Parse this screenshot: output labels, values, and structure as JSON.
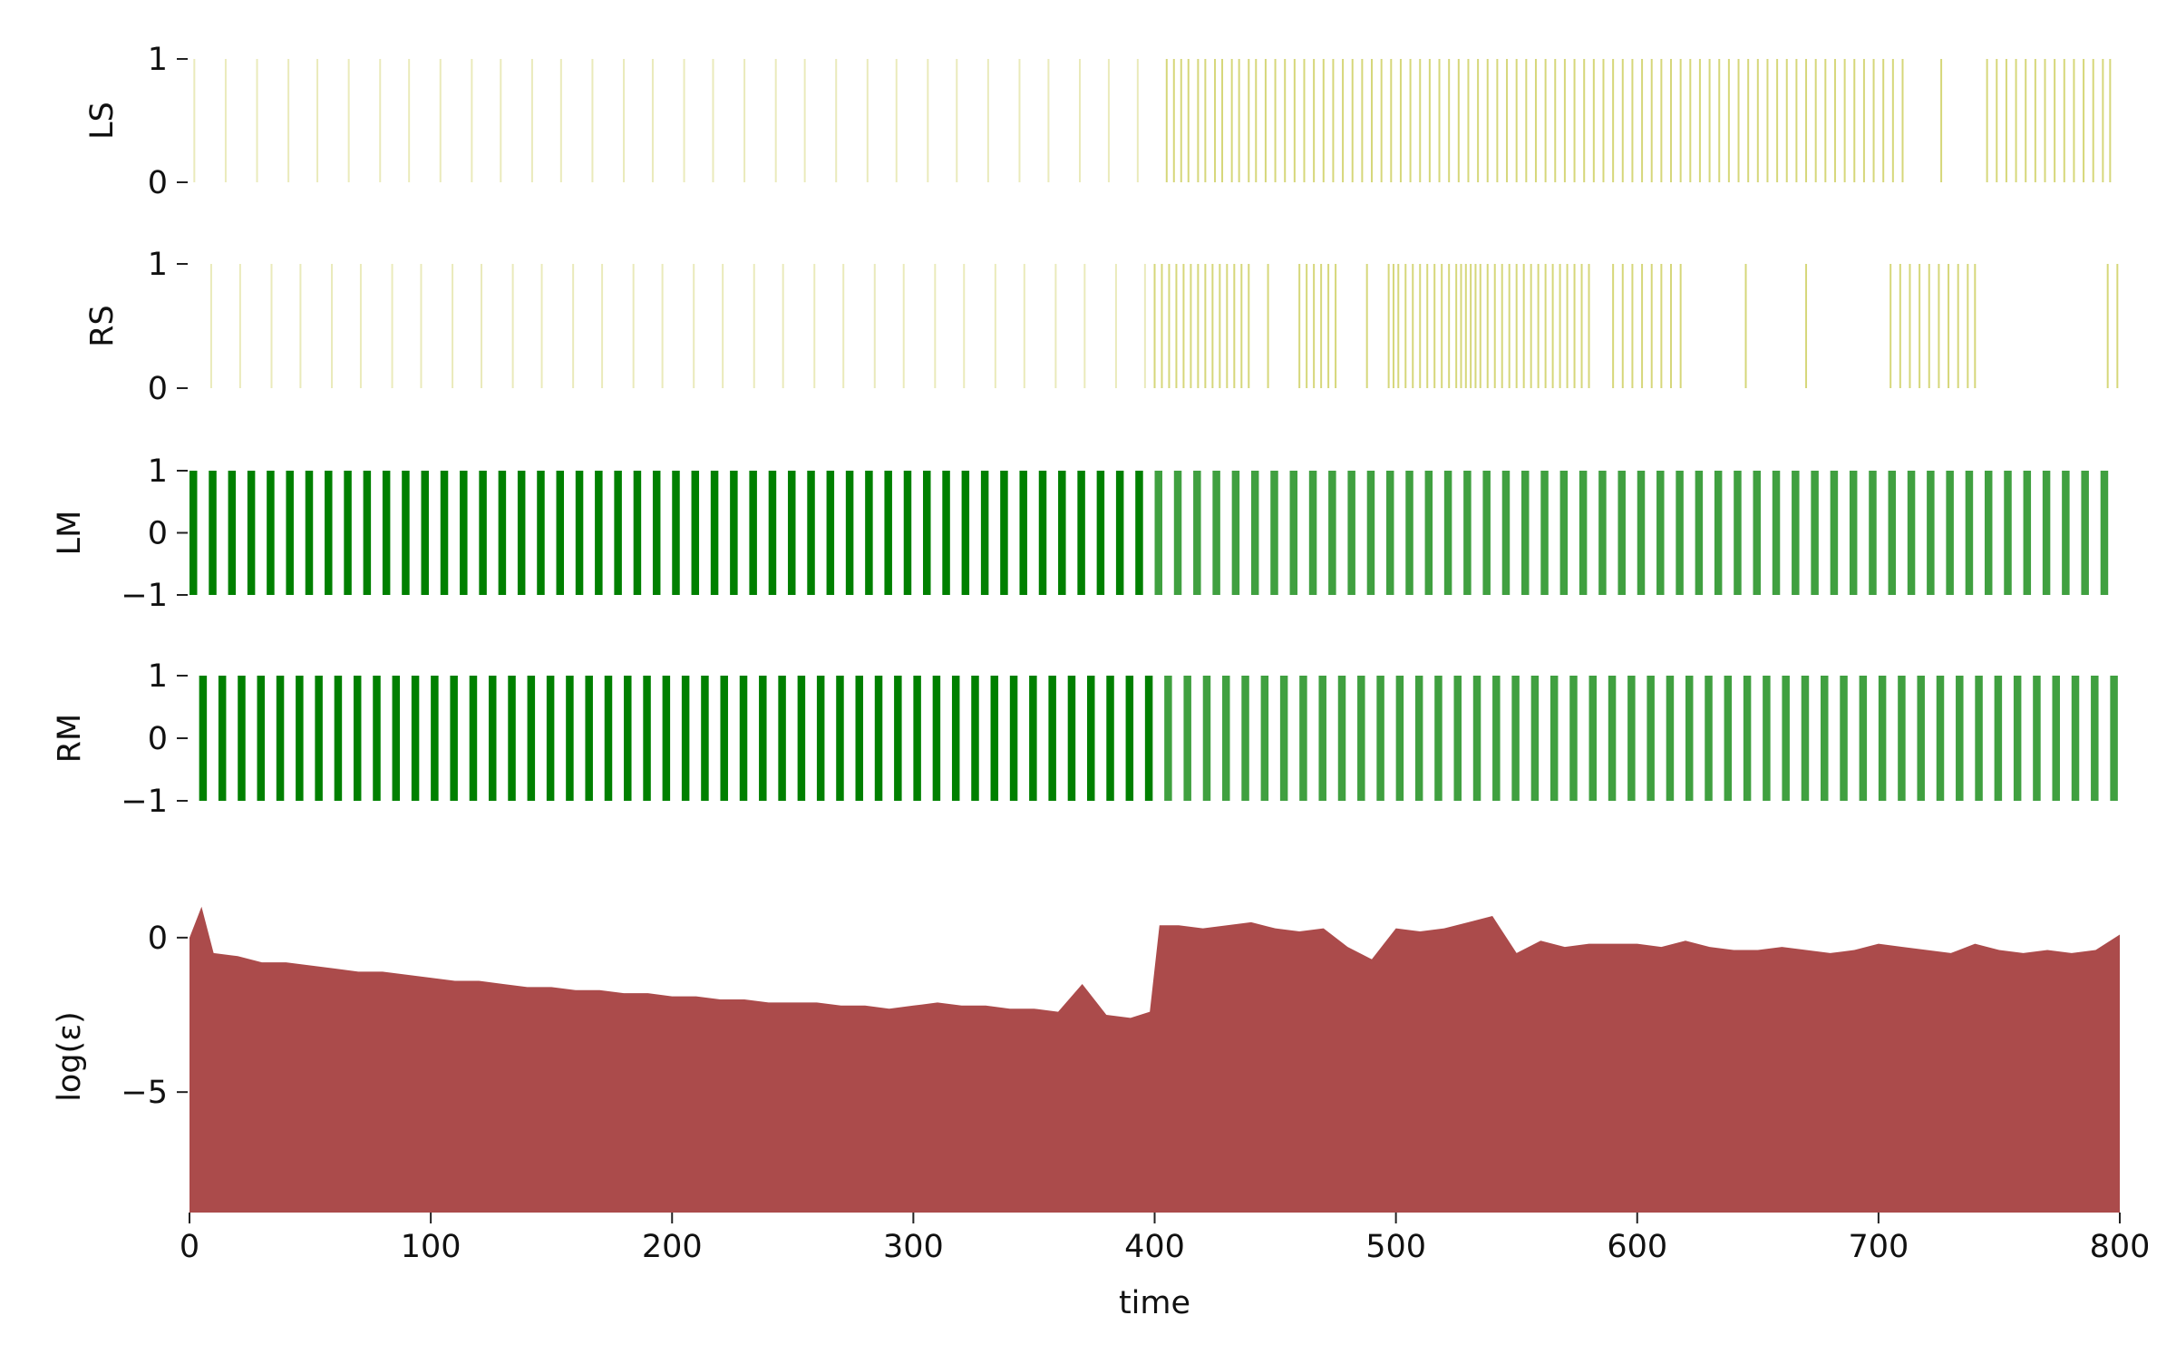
{
  "chart_data": [
    {
      "type": "eventplot",
      "ylabel": "LS",
      "color": "#bcbd22",
      "ylim": [
        0,
        1
      ],
      "yticks": [
        0,
        1
      ],
      "xlim": [
        0,
        800
      ],
      "events": [
        2,
        15,
        28,
        41,
        53,
        66,
        79,
        91,
        104,
        117,
        129,
        142,
        154,
        167,
        180,
        192,
        205,
        217,
        230,
        243,
        255,
        268,
        281,
        293,
        306,
        318,
        331,
        344,
        356,
        369,
        381,
        393,
        405,
        408,
        411,
        414,
        418,
        421,
        425,
        428,
        432,
        435,
        439,
        442,
        446,
        450,
        454,
        458,
        462,
        466,
        470,
        474,
        478,
        482,
        486,
        490,
        494,
        498,
        502,
        506,
        510,
        514,
        518,
        522,
        526,
        530,
        534,
        538,
        542,
        546,
        550,
        554,
        558,
        562,
        566,
        570,
        574,
        578,
        582,
        586,
        590,
        594,
        598,
        602,
        606,
        610,
        614,
        618,
        622,
        626,
        630,
        634,
        638,
        642,
        646,
        650,
        654,
        658,
        662,
        666,
        670,
        674,
        678,
        682,
        686,
        690,
        694,
        698,
        702,
        706,
        710,
        726,
        745,
        749,
        753,
        757,
        761,
        765,
        769,
        773,
        777,
        781,
        785,
        789,
        793,
        796
      ]
    },
    {
      "type": "eventplot",
      "ylabel": "RS",
      "color": "#bcbd22",
      "ylim": [
        0,
        1
      ],
      "yticks": [
        0,
        1
      ],
      "xlim": [
        0,
        800
      ],
      "events": [
        9,
        21,
        34,
        46,
        59,
        71,
        84,
        96,
        109,
        121,
        134,
        146,
        159,
        171,
        184,
        196,
        209,
        221,
        234,
        246,
        259,
        271,
        284,
        296,
        309,
        321,
        334,
        346,
        359,
        371,
        384,
        396,
        400,
        403,
        406,
        409,
        412,
        415,
        418,
        421,
        424,
        427,
        430,
        433,
        436,
        439,
        447,
        460,
        463,
        466,
        469,
        472,
        475,
        488,
        497,
        499,
        501,
        504,
        507,
        510,
        513,
        516,
        519,
        522,
        525,
        527,
        529,
        531,
        533,
        535,
        538,
        541,
        544,
        547,
        550,
        553,
        556,
        559,
        562,
        565,
        568,
        571,
        574,
        577,
        580,
        590,
        594,
        598,
        602,
        606,
        610,
        614,
        618,
        645,
        670,
        705,
        709,
        713,
        717,
        721,
        725,
        729,
        733,
        737,
        740,
        795,
        799
      ]
    },
    {
      "type": "eventplot",
      "ylabel": "LM",
      "color": "#008000",
      "ylim": [
        -1,
        1
      ],
      "yticks": [
        {
          "value": -1,
          "label": "−1"
        },
        0,
        1
      ],
      "xlim": [
        0,
        800
      ],
      "events": [
        0,
        8,
        16,
        24,
        32,
        40,
        48,
        56,
        64,
        72,
        80,
        88,
        96,
        104,
        112,
        120,
        128,
        136,
        144,
        152,
        160,
        168,
        176,
        184,
        192,
        200,
        208,
        216,
        224,
        232,
        240,
        248,
        256,
        264,
        272,
        280,
        288,
        296,
        304,
        312,
        320,
        328,
        336,
        344,
        352,
        360,
        368,
        376,
        384,
        392,
        400,
        408,
        416,
        424,
        432,
        440,
        448,
        456,
        464,
        472,
        480,
        488,
        496,
        504,
        512,
        520,
        528,
        536,
        544,
        552,
        560,
        568,
        576,
        584,
        592,
        600,
        608,
        616,
        624,
        632,
        640,
        648,
        656,
        664,
        672,
        680,
        688,
        696,
        704,
        712,
        720,
        728,
        736,
        744,
        752,
        760,
        768,
        776,
        784,
        792
      ]
    },
    {
      "type": "eventplot",
      "ylabel": "RM",
      "color": "#008000",
      "ylim": [
        -1,
        1
      ],
      "yticks": [
        {
          "value": -1,
          "label": "−1"
        },
        0,
        1
      ],
      "xlim": [
        0,
        800
      ],
      "events": [
        4,
        12,
        20,
        28,
        36,
        44,
        52,
        60,
        68,
        76,
        84,
        92,
        100,
        108,
        116,
        124,
        132,
        140,
        148,
        156,
        164,
        172,
        180,
        188,
        196,
        204,
        212,
        220,
        228,
        236,
        244,
        252,
        260,
        268,
        276,
        284,
        292,
        300,
        308,
        316,
        324,
        332,
        340,
        348,
        356,
        364,
        372,
        380,
        388,
        396,
        404,
        412,
        420,
        428,
        436,
        444,
        452,
        460,
        468,
        476,
        484,
        492,
        500,
        508,
        516,
        524,
        532,
        540,
        548,
        556,
        564,
        572,
        580,
        588,
        596,
        604,
        612,
        620,
        628,
        636,
        644,
        652,
        660,
        668,
        676,
        684,
        692,
        700,
        708,
        716,
        724,
        732,
        740,
        748,
        756,
        764,
        772,
        780,
        788,
        796
      ]
    },
    {
      "type": "area",
      "ylabel": "log(ε)",
      "xlabel": "time",
      "color": "#ab4b4b",
      "ylim": [
        -8.9,
        1.2
      ],
      "yticks": [
        {
          "value": -5,
          "label": "−5"
        },
        0
      ],
      "xlim": [
        0,
        800
      ],
      "xticks": [
        0,
        100,
        200,
        300,
        400,
        500,
        600,
        700,
        800
      ],
      "x": [
        0,
        5,
        10,
        20,
        30,
        40,
        50,
        60,
        70,
        80,
        90,
        100,
        110,
        120,
        130,
        140,
        150,
        160,
        170,
        180,
        190,
        200,
        210,
        220,
        230,
        240,
        250,
        260,
        270,
        280,
        290,
        300,
        310,
        320,
        330,
        340,
        350,
        360,
        370,
        380,
        390,
        398,
        402,
        410,
        420,
        430,
        440,
        450,
        460,
        470,
        480,
        490,
        500,
        510,
        520,
        530,
        540,
        550,
        560,
        570,
        580,
        590,
        600,
        610,
        620,
        630,
        640,
        650,
        660,
        670,
        680,
        690,
        700,
        710,
        720,
        730,
        740,
        750,
        760,
        770,
        780,
        790,
        800
      ],
      "values": [
        0,
        1.0,
        -0.5,
        -0.6,
        -0.8,
        -0.8,
        -0.9,
        -1.0,
        -1.1,
        -1.1,
        -1.2,
        -1.3,
        -1.4,
        -1.4,
        -1.5,
        -1.6,
        -1.6,
        -1.7,
        -1.7,
        -1.8,
        -1.8,
        -1.9,
        -1.9,
        -2.0,
        -2.0,
        -2.1,
        -2.1,
        -2.1,
        -2.2,
        -2.2,
        -2.3,
        -2.2,
        -2.1,
        -2.2,
        -2.2,
        -2.3,
        -2.3,
        -2.4,
        -1.5,
        -2.5,
        -2.6,
        -2.4,
        0.4,
        0.4,
        0.3,
        0.4,
        0.5,
        0.3,
        0.2,
        0.3,
        -0.3,
        -0.7,
        0.3,
        0.2,
        0.3,
        0.5,
        0.7,
        -0.5,
        -0.1,
        -0.3,
        -0.2,
        -0.2,
        -0.2,
        -0.3,
        -0.1,
        -0.3,
        -0.4,
        -0.4,
        -0.3,
        -0.4,
        -0.5,
        -0.4,
        -0.2,
        -0.3,
        -0.4,
        -0.5,
        -0.2,
        -0.4,
        -0.5,
        -0.4,
        -0.5,
        -0.4,
        0.1
      ]
    }
  ]
}
